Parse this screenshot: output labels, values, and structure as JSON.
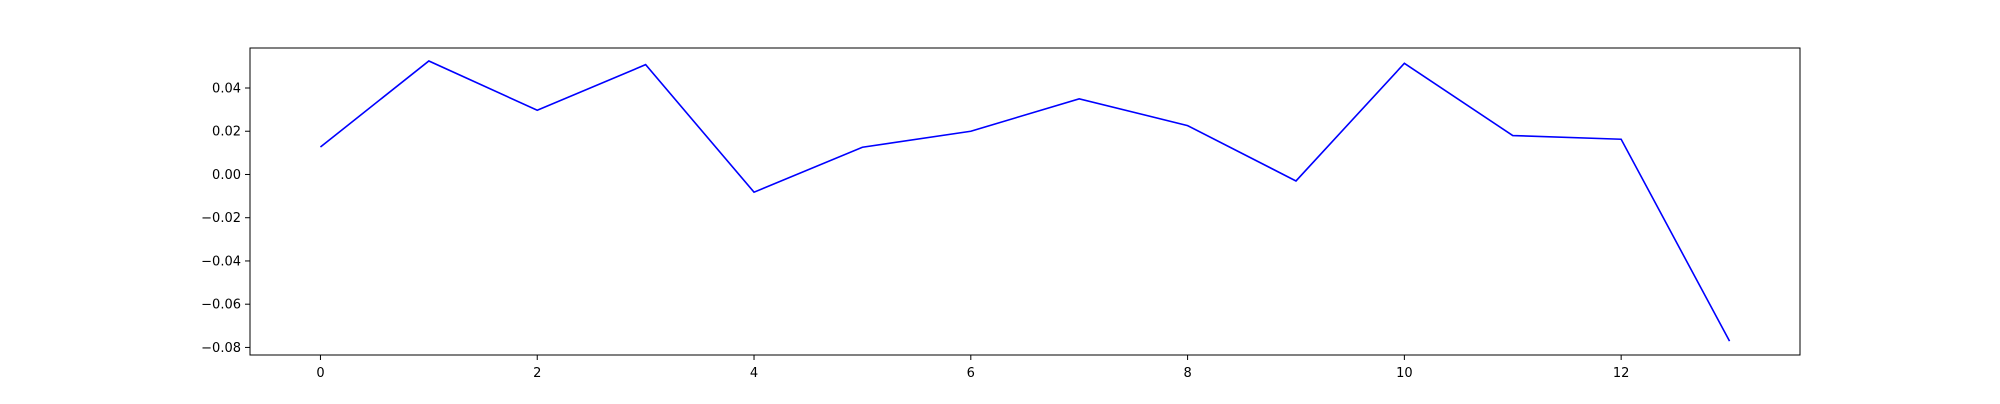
{
  "chart_data": {
    "type": "line",
    "title": "",
    "xlabel": "",
    "ylabel": "",
    "xlim": [
      -0.65,
      13.65
    ],
    "ylim": [
      -0.0835,
      0.0585
    ],
    "x_ticks": [
      0,
      2,
      4,
      6,
      8,
      10,
      12
    ],
    "y_ticks": [
      -0.08,
      -0.06,
      -0.04,
      -0.02,
      0.0,
      0.02,
      0.04
    ],
    "grid": false,
    "legend": "none",
    "series": [
      {
        "color": "#0000ff",
        "x": [
          0,
          1,
          2,
          3,
          4,
          5,
          6,
          7,
          8,
          9,
          10,
          11,
          12,
          13
        ],
        "y": [
          0.0127,
          0.0525,
          0.0297,
          0.0508,
          -0.0082,
          0.0126,
          0.02,
          0.035,
          0.0226,
          -0.003,
          0.0514,
          0.018,
          0.0163,
          -0.0771
        ]
      }
    ]
  }
}
